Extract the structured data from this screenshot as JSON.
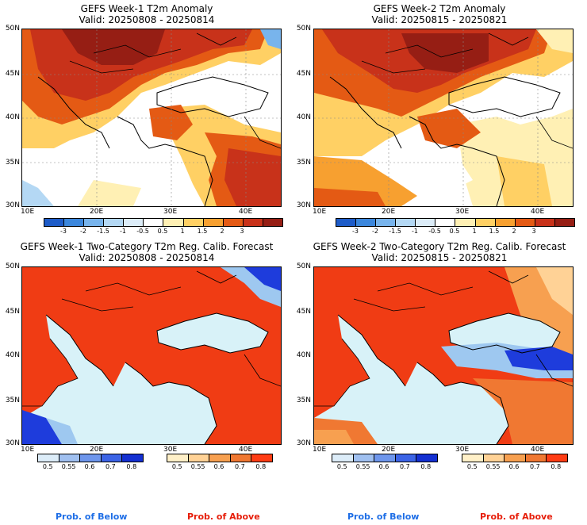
{
  "panels": [
    {
      "title": "GEFS Week-1 T2m Anomaly",
      "valid": "Valid: 20250808 - 20250814"
    },
    {
      "title": "GEFS Week-2 T2m Anomaly",
      "valid": "Valid: 20250815 - 20250821"
    },
    {
      "title": "GEFS Week-1 Two-Category T2m Reg. Calib. Forecast",
      "valid": "Valid: 20250808 - 20250814"
    },
    {
      "title": "GEFS Week-2 Two-Category T2m Reg. Calib. Forecast",
      "valid": "Valid: 20250815 - 20250821"
    }
  ],
  "axes": {
    "lat_labels": [
      "50N",
      "45N",
      "40N",
      "35N",
      "30N"
    ],
    "lon_labels": [
      "10E",
      "20E",
      "30E",
      "40E"
    ]
  },
  "anomaly_colorbar": {
    "ticks": [
      "-3",
      "-2",
      "-1.5",
      "-1",
      "-0.5",
      "0.5",
      "1",
      "1.5",
      "2",
      "3"
    ],
    "colors": [
      "#1e5cc8",
      "#3c87dc",
      "#78b4ec",
      "#b4d8f4",
      "#dcecf8",
      "#ffffff",
      "#fff0b4",
      "#ffd064",
      "#f7a030",
      "#e45a14",
      "#c8321a",
      "#961e14"
    ]
  },
  "probability_colorbar": {
    "below_ticks": [
      "0.5",
      "0.55",
      "0.6",
      "0.7",
      "0.8"
    ],
    "below_colors": [
      "#dcecf8",
      "#a0c0f0",
      "#6e96ec",
      "#3c64e6",
      "#1430d2"
    ],
    "above_ticks": [
      "0.5",
      "0.55",
      "0.6",
      "0.7",
      "0.8"
    ],
    "above_colors": [
      "#fff0c8",
      "#ffd296",
      "#f7a050",
      "#f07832",
      "#ff3c14"
    ],
    "below_label": "Prob. of Below",
    "above_label": "Prob. of Above",
    "below_label_color": "#1e6ee6",
    "above_label_color": "#e61e0a"
  },
  "map_colors": {
    "sea_light": "#d8f2f8",
    "land_above": "#f03c14",
    "deep_red": "#b42814",
    "orange": "#f0a040",
    "yellow": "#ffe8a0",
    "white": "#ffffff",
    "blue_strong": "#1e3cdc",
    "blue_light": "#9ec8f0"
  }
}
